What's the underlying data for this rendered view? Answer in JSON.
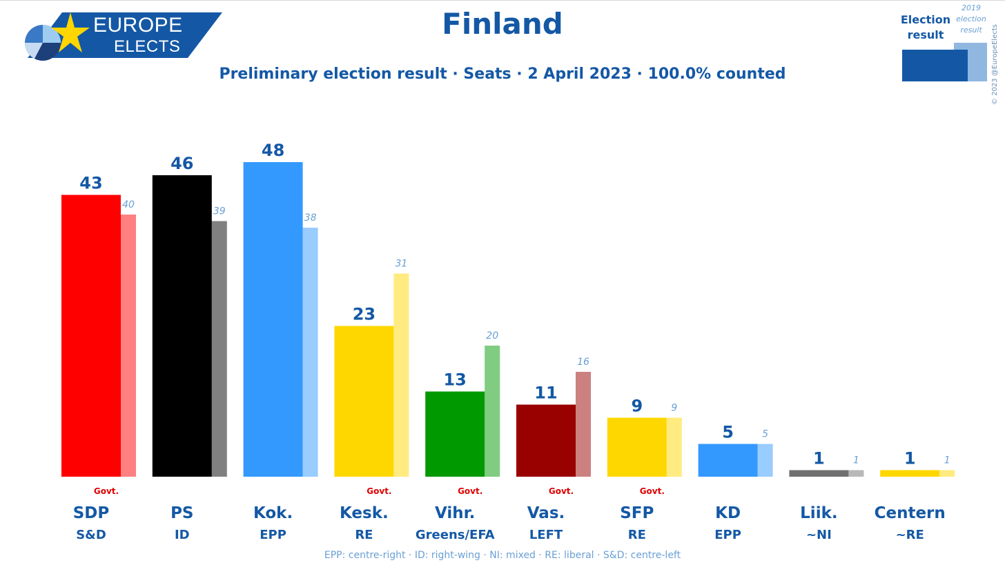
{
  "logo": {
    "line1": "EUROPE",
    "line2": "ELECTS"
  },
  "legend": {
    "current_label": "Election result",
    "previous_label": "2019 election result"
  },
  "copyright": "© 2023 @EuropeElects",
  "colors": {
    "title": "#1458a5",
    "govt": "#e00000",
    "previous_label": "#6a9fd4"
  },
  "chart_data": {
    "type": "bar",
    "title": "Finland",
    "subtitle": "Preliminary election result · Seats · 2 April 2023 · 100.0% counted",
    "ylim": [
      0,
      50
    ],
    "grid": false,
    "legend_position": "top-right",
    "categories": [
      "SDP",
      "PS",
      "Kok.",
      "Kesk.",
      "Vihr.",
      "Vas.",
      "SFP",
      "KD",
      "Liik.",
      "Centern"
    ],
    "groups": [
      "S&D",
      "ID",
      "EPP",
      "RE",
      "Greens/EFA",
      "LEFT",
      "RE",
      "EPP",
      "~NI",
      "~RE"
    ],
    "govt": [
      true,
      false,
      false,
      true,
      true,
      true,
      true,
      false,
      false,
      false
    ],
    "govt_label": "Govt.",
    "series": [
      {
        "name": "Election result",
        "values": [
          43,
          46,
          48,
          23,
          13,
          11,
          9,
          5,
          1,
          1
        ]
      },
      {
        "name": "2019 election result",
        "values": [
          40,
          39,
          38,
          31,
          20,
          16,
          9,
          5,
          1,
          1
        ]
      }
    ],
    "bar_colors": [
      "#ff0000",
      "#000000",
      "#3399ff",
      "#ffd700",
      "#009900",
      "#990000",
      "#ffd700",
      "#3399ff",
      "#707070",
      "#ffd700"
    ],
    "prev_colors": [
      "#ff8080",
      "#808080",
      "#99ccff",
      "#ffeb80",
      "#80cc80",
      "#cc8080",
      "#ffeb80",
      "#99ccff",
      "#b8b8b8",
      "#ffeb80"
    ],
    "footnote": "EPP: centre-right · ID: right-wing · NI: mixed · RE: liberal · S&D: centre-left"
  }
}
